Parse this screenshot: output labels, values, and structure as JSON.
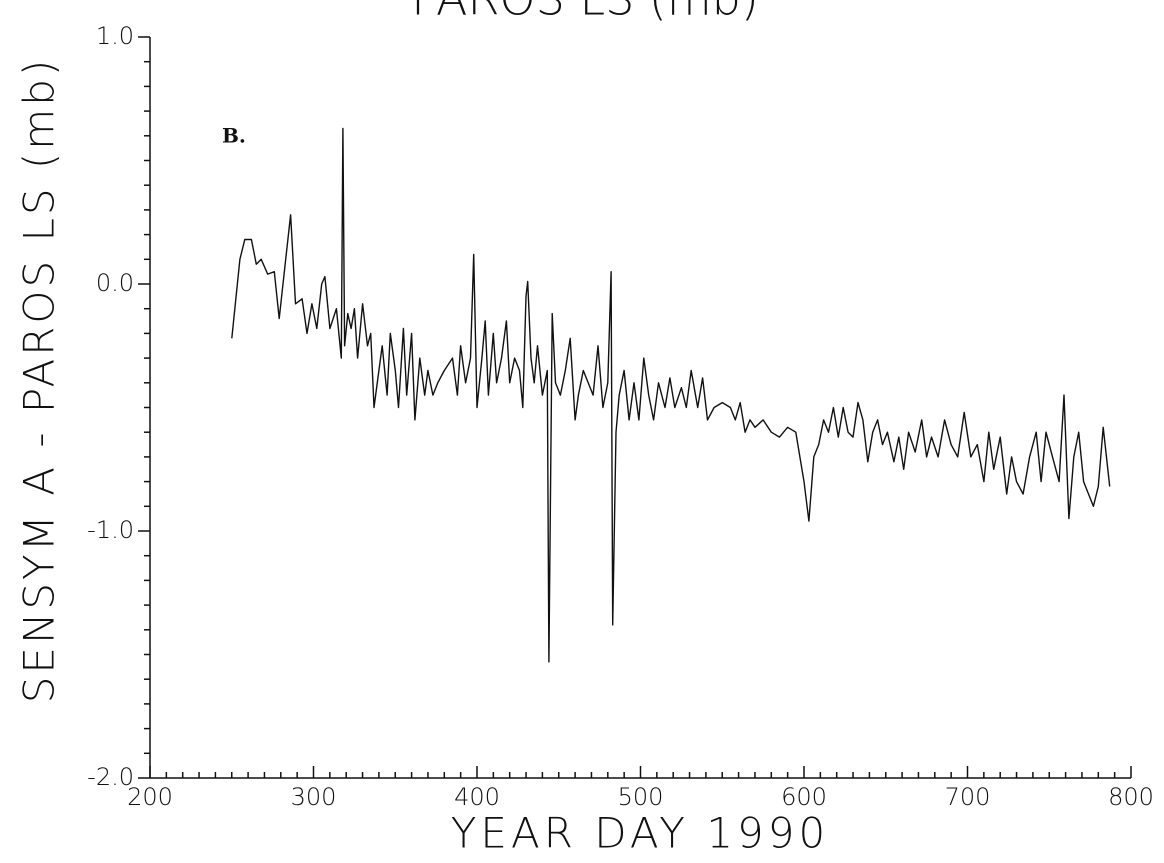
{
  "chart_data": {
    "type": "line",
    "title": "PAROS LS (mb)",
    "xlabel": "YEAR DAY 1990",
    "ylabel": "SENSYM A - PAROS LS (mb)",
    "annotation": "B.",
    "xlim": [
      200,
      800
    ],
    "xticks": [
      200,
      300,
      400,
      500,
      600,
      700,
      800
    ],
    "ylim": [
      -2,
      1
    ],
    "yticks": [
      {
        "value": 1,
        "label": "1.0"
      },
      {
        "value": 0,
        "label": "0.0"
      },
      {
        "value": -1,
        "label": "-1.0"
      },
      {
        "value": -2,
        "label": "-2.0"
      }
    ],
    "color": "#111111",
    "x": [
      250,
      255,
      258,
      262,
      265,
      268,
      272,
      276,
      279,
      283,
      286,
      289,
      293,
      296,
      299,
      302,
      305,
      307,
      310,
      314,
      317,
      318,
      319,
      321,
      323,
      325,
      327,
      330,
      333,
      335,
      337,
      340,
      342,
      345,
      347,
      350,
      352,
      355,
      357,
      360,
      362,
      365,
      368,
      370,
      373,
      376,
      380,
      385,
      388,
      390,
      393,
      396,
      398,
      400,
      403,
      405,
      407,
      410,
      412,
      415,
      418,
      420,
      423,
      426,
      428,
      430,
      431,
      433,
      435,
      437,
      440,
      443,
      444,
      446,
      448,
      451,
      454,
      457,
      460,
      462,
      465,
      468,
      471,
      474,
      477,
      480,
      482,
      483,
      485,
      487,
      490,
      493,
      496,
      499,
      502,
      505,
      508,
      511,
      515,
      518,
      521,
      525,
      528,
      531,
      535,
      538,
      541,
      545,
      550,
      555,
      558,
      561,
      564,
      567,
      570,
      575,
      580,
      585,
      590,
      595,
      600,
      603,
      606,
      609,
      612,
      615,
      618,
      621,
      624,
      627,
      630,
      633,
      636,
      639,
      642,
      645,
      648,
      651,
      655,
      658,
      661,
      664,
      668,
      672,
      675,
      678,
      682,
      686,
      690,
      694,
      698,
      702,
      706,
      710,
      713,
      716,
      720,
      724,
      727,
      730,
      734,
      738,
      742,
      745,
      748,
      752,
      756,
      759,
      762,
      765,
      768,
      771,
      774,
      777,
      780,
      783,
      787
    ],
    "values": [
      -0.22,
      0.1,
      0.18,
      0.18,
      0.08,
      0.1,
      0.04,
      0.05,
      -0.14,
      0.1,
      0.28,
      -0.08,
      -0.06,
      -0.2,
      -0.08,
      -0.18,
      0.0,
      0.03,
      -0.18,
      -0.1,
      -0.3,
      0.63,
      -0.25,
      -0.12,
      -0.18,
      -0.1,
      -0.3,
      -0.08,
      -0.25,
      -0.2,
      -0.5,
      -0.35,
      -0.25,
      -0.45,
      -0.2,
      -0.35,
      -0.5,
      -0.18,
      -0.45,
      -0.2,
      -0.55,
      -0.3,
      -0.45,
      -0.35,
      -0.45,
      -0.4,
      -0.35,
      -0.3,
      -0.45,
      -0.25,
      -0.4,
      -0.3,
      0.12,
      -0.5,
      -0.3,
      -0.15,
      -0.45,
      -0.2,
      -0.4,
      -0.3,
      -0.15,
      -0.4,
      -0.3,
      -0.35,
      -0.5,
      -0.05,
      0.01,
      -0.3,
      -0.4,
      -0.25,
      -0.45,
      -0.35,
      -1.53,
      -0.12,
      -0.4,
      -0.45,
      -0.35,
      -0.22,
      -0.55,
      -0.45,
      -0.35,
      -0.4,
      -0.45,
      -0.25,
      -0.5,
      -0.4,
      0.05,
      -1.38,
      -0.6,
      -0.45,
      -0.35,
      -0.55,
      -0.4,
      -0.55,
      -0.3,
      -0.45,
      -0.55,
      -0.4,
      -0.5,
      -0.38,
      -0.5,
      -0.42,
      -0.5,
      -0.35,
      -0.5,
      -0.38,
      -0.55,
      -0.5,
      -0.48,
      -0.5,
      -0.55,
      -0.48,
      -0.6,
      -0.55,
      -0.58,
      -0.55,
      -0.6,
      -0.62,
      -0.58,
      -0.6,
      -0.8,
      -0.96,
      -0.7,
      -0.65,
      -0.55,
      -0.6,
      -0.5,
      -0.62,
      -0.5,
      -0.6,
      -0.62,
      -0.48,
      -0.55,
      -0.72,
      -0.6,
      -0.55,
      -0.65,
      -0.6,
      -0.72,
      -0.62,
      -0.75,
      -0.6,
      -0.68,
      -0.55,
      -0.7,
      -0.62,
      -0.7,
      -0.55,
      -0.65,
      -0.7,
      -0.52,
      -0.7,
      -0.65,
      -0.8,
      -0.6,
      -0.75,
      -0.62,
      -0.85,
      -0.7,
      -0.8,
      -0.85,
      -0.7,
      -0.6,
      -0.8,
      -0.6,
      -0.7,
      -0.8,
      -0.45,
      -0.95,
      -0.7,
      -0.6,
      -0.8,
      -0.85,
      -0.9,
      -0.82,
      -0.58,
      -0.82
    ]
  }
}
